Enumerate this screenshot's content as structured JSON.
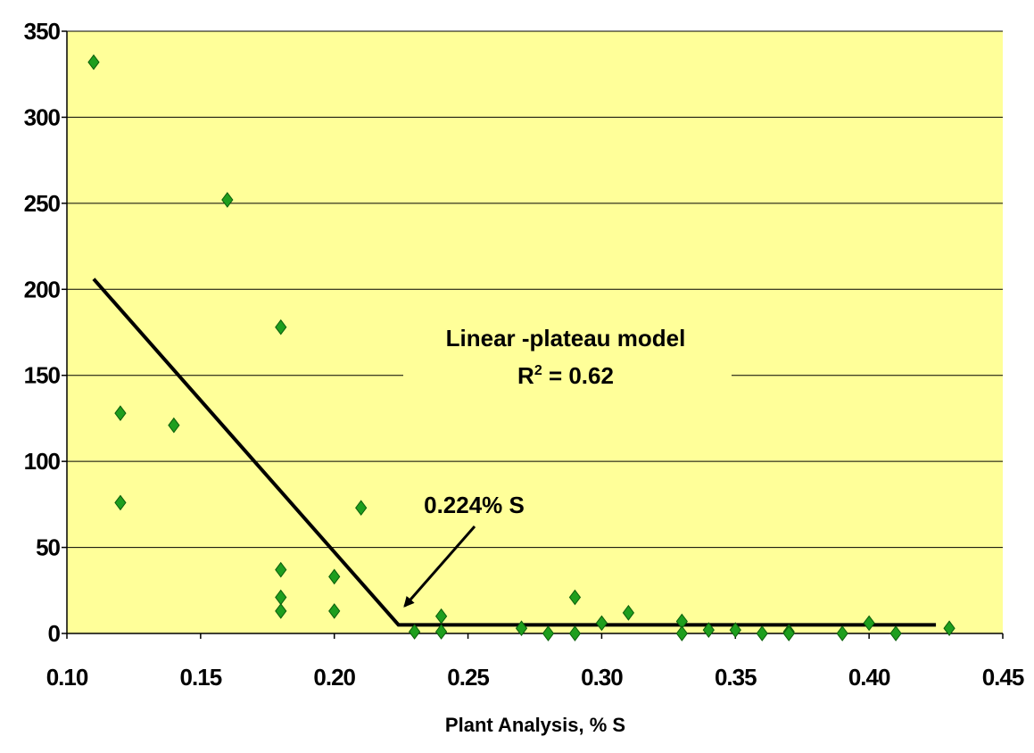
{
  "chart_data": {
    "type": "scatter",
    "title": "",
    "xlabel": "Plant Analysis, % S",
    "ylabel": "",
    "xlim": [
      0.1,
      0.45
    ],
    "ylim": [
      0,
      350
    ],
    "x_ticks": [
      0.1,
      0.15,
      0.2,
      0.25,
      0.3,
      0.35,
      0.4,
      0.45
    ],
    "x_tick_labels": [
      "0.10",
      "0.15",
      "0.20",
      "0.25",
      "0.30",
      "0.35",
      "0.40",
      "0.45"
    ],
    "y_ticks": [
      0,
      50,
      100,
      150,
      200,
      250,
      300,
      350
    ],
    "y_tick_labels": [
      "0",
      "50",
      "100",
      "150",
      "200",
      "250",
      "300",
      "350"
    ],
    "grid": "horizontal",
    "plot_background": "#FFFF99",
    "marker_color": "#1E9E1E",
    "line_color": "#000000",
    "points": [
      {
        "x": 0.11,
        "y": 332
      },
      {
        "x": 0.12,
        "y": 128
      },
      {
        "x": 0.12,
        "y": 76
      },
      {
        "x": 0.14,
        "y": 121
      },
      {
        "x": 0.16,
        "y": 252
      },
      {
        "x": 0.18,
        "y": 178
      },
      {
        "x": 0.18,
        "y": 37
      },
      {
        "x": 0.18,
        "y": 21
      },
      {
        "x": 0.18,
        "y": 13
      },
      {
        "x": 0.2,
        "y": 33
      },
      {
        "x": 0.2,
        "y": 13
      },
      {
        "x": 0.21,
        "y": 73
      },
      {
        "x": 0.23,
        "y": 1
      },
      {
        "x": 0.24,
        "y": 10
      },
      {
        "x": 0.24,
        "y": 1
      },
      {
        "x": 0.27,
        "y": 3
      },
      {
        "x": 0.28,
        "y": 0
      },
      {
        "x": 0.29,
        "y": 21
      },
      {
        "x": 0.29,
        "y": 0
      },
      {
        "x": 0.3,
        "y": 6
      },
      {
        "x": 0.31,
        "y": 12
      },
      {
        "x": 0.33,
        "y": 7
      },
      {
        "x": 0.33,
        "y": 0
      },
      {
        "x": 0.34,
        "y": 2
      },
      {
        "x": 0.35,
        "y": 2
      },
      {
        "x": 0.36,
        "y": 0
      },
      {
        "x": 0.37,
        "y": 1
      },
      {
        "x": 0.37,
        "y": 0
      },
      {
        "x": 0.39,
        "y": 0
      },
      {
        "x": 0.4,
        "y": 6
      },
      {
        "x": 0.41,
        "y": 0
      },
      {
        "x": 0.43,
        "y": 3
      }
    ],
    "model_line": [
      {
        "x": 0.11,
        "y": 206
      },
      {
        "x": 0.224,
        "y": 5
      },
      {
        "x": 0.425,
        "y": 5
      }
    ],
    "annotations": {
      "model_line1": "Linear -plateau model",
      "model_r2_base": "R",
      "model_r2_sup": "2",
      "model_r2_value": " = 0.62",
      "breakpoint_label": "0.224% S",
      "breakpoint_point": {
        "x": 0.224,
        "y": 5
      },
      "breakpoint_label_anchor": {
        "x": 0.2335,
        "y": 70
      }
    }
  }
}
